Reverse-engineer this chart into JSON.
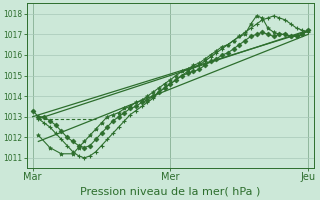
{
  "bg_color": "#cce8d8",
  "grid_color": "#a8c8b8",
  "line_color": "#2d6e2d",
  "title": "Pression niveau de la mer( hPa )",
  "title_fontsize": 8,
  "ylim": [
    1010.5,
    1018.5
  ],
  "yticks": [
    1011,
    1012,
    1013,
    1014,
    1015,
    1016,
    1017,
    1018
  ],
  "xtick_labels": [
    "Mar",
    "Mer",
    "Jeu"
  ],
  "xtick_pos": [
    0,
    48,
    96
  ],
  "vline_pos": [
    0,
    48,
    96
  ],
  "series1_x": [
    0,
    2,
    4,
    6,
    8,
    10,
    12,
    14,
    16,
    18,
    20,
    22,
    24,
    26,
    28,
    30,
    32,
    34,
    36,
    38,
    40,
    42,
    44,
    46,
    48,
    50,
    52,
    54,
    56,
    58,
    60,
    62,
    64,
    66,
    68,
    70,
    72,
    74,
    76,
    78,
    80,
    82,
    84,
    86,
    88,
    90,
    92,
    94,
    96
  ],
  "series1": [
    1013.3,
    1013.0,
    1013.0,
    1012.8,
    1012.6,
    1012.3,
    1012.0,
    1011.8,
    1011.6,
    1011.5,
    1011.6,
    1011.9,
    1012.2,
    1012.5,
    1012.8,
    1013.0,
    1013.2,
    1013.4,
    1013.5,
    1013.7,
    1013.8,
    1014.0,
    1014.2,
    1014.4,
    1014.6,
    1014.8,
    1015.0,
    1015.1,
    1015.2,
    1015.3,
    1015.5,
    1015.7,
    1015.8,
    1016.0,
    1016.1,
    1016.3,
    1016.5,
    1016.7,
    1016.9,
    1017.0,
    1017.1,
    1017.0,
    1016.9,
    1017.0,
    1017.0,
    1016.9,
    1016.9,
    1017.0,
    1017.2
  ],
  "series2_x": [
    2,
    4,
    6,
    8,
    10,
    12,
    14,
    16,
    18,
    20,
    22,
    24,
    26,
    28,
    30,
    32,
    34,
    36,
    38,
    40,
    42,
    44,
    46,
    48,
    50,
    52,
    54,
    56,
    58,
    60,
    62,
    64,
    66,
    68,
    70,
    72,
    74,
    76,
    78,
    80,
    82,
    84,
    86,
    88,
    90,
    92,
    94,
    96
  ],
  "series2": [
    1012.9,
    1012.7,
    1012.5,
    1012.2,
    1011.9,
    1011.6,
    1011.3,
    1011.1,
    1011.0,
    1011.1,
    1011.3,
    1011.6,
    1011.9,
    1012.2,
    1012.5,
    1012.8,
    1013.1,
    1013.3,
    1013.5,
    1013.7,
    1013.9,
    1014.2,
    1014.4,
    1014.6,
    1014.8,
    1015.0,
    1015.2,
    1015.4,
    1015.5,
    1015.7,
    1015.9,
    1016.1,
    1016.3,
    1016.5,
    1016.7,
    1016.9,
    1017.1,
    1017.3,
    1017.5,
    1017.7,
    1017.8,
    1017.9,
    1017.8,
    1017.7,
    1017.5,
    1017.3,
    1017.2,
    1017.1
  ],
  "series3_x": [
    2,
    6,
    10,
    14,
    16,
    18,
    20,
    22,
    24,
    26,
    28,
    30,
    32,
    34,
    36,
    38,
    40,
    42,
    44,
    46,
    48,
    50,
    52,
    54,
    56,
    58,
    60,
    62,
    64,
    66,
    68,
    70,
    72,
    74,
    76,
    78,
    80,
    82,
    84,
    86,
    88,
    90,
    92,
    94,
    96
  ],
  "series3": [
    1012.1,
    1011.5,
    1011.2,
    1011.2,
    1011.5,
    1011.8,
    1012.1,
    1012.4,
    1012.7,
    1013.0,
    1013.1,
    1013.2,
    1013.4,
    1013.5,
    1013.7,
    1013.8,
    1014.0,
    1014.2,
    1014.4,
    1014.6,
    1014.8,
    1015.0,
    1015.2,
    1015.3,
    1015.5,
    1015.6,
    1015.8,
    1016.0,
    1016.2,
    1016.4,
    1016.5,
    1016.7,
    1016.9,
    1017.0,
    1017.5,
    1017.9,
    1017.8,
    1017.3,
    1017.1,
    1017.0,
    1017.0,
    1016.9,
    1016.9,
    1017.0,
    1017.2
  ],
  "flat_line_x": [
    2,
    22
  ],
  "flat_line_y": [
    1012.9,
    1012.9
  ],
  "trend1_x": [
    0,
    96
  ],
  "trend1_y": [
    1013.0,
    1017.15
  ],
  "trend2_x": [
    2,
    96
  ],
  "trend2_y": [
    1011.8,
    1017.0
  ],
  "trend3_x": [
    2,
    96
  ],
  "trend3_y": [
    1012.9,
    1017.2
  ]
}
